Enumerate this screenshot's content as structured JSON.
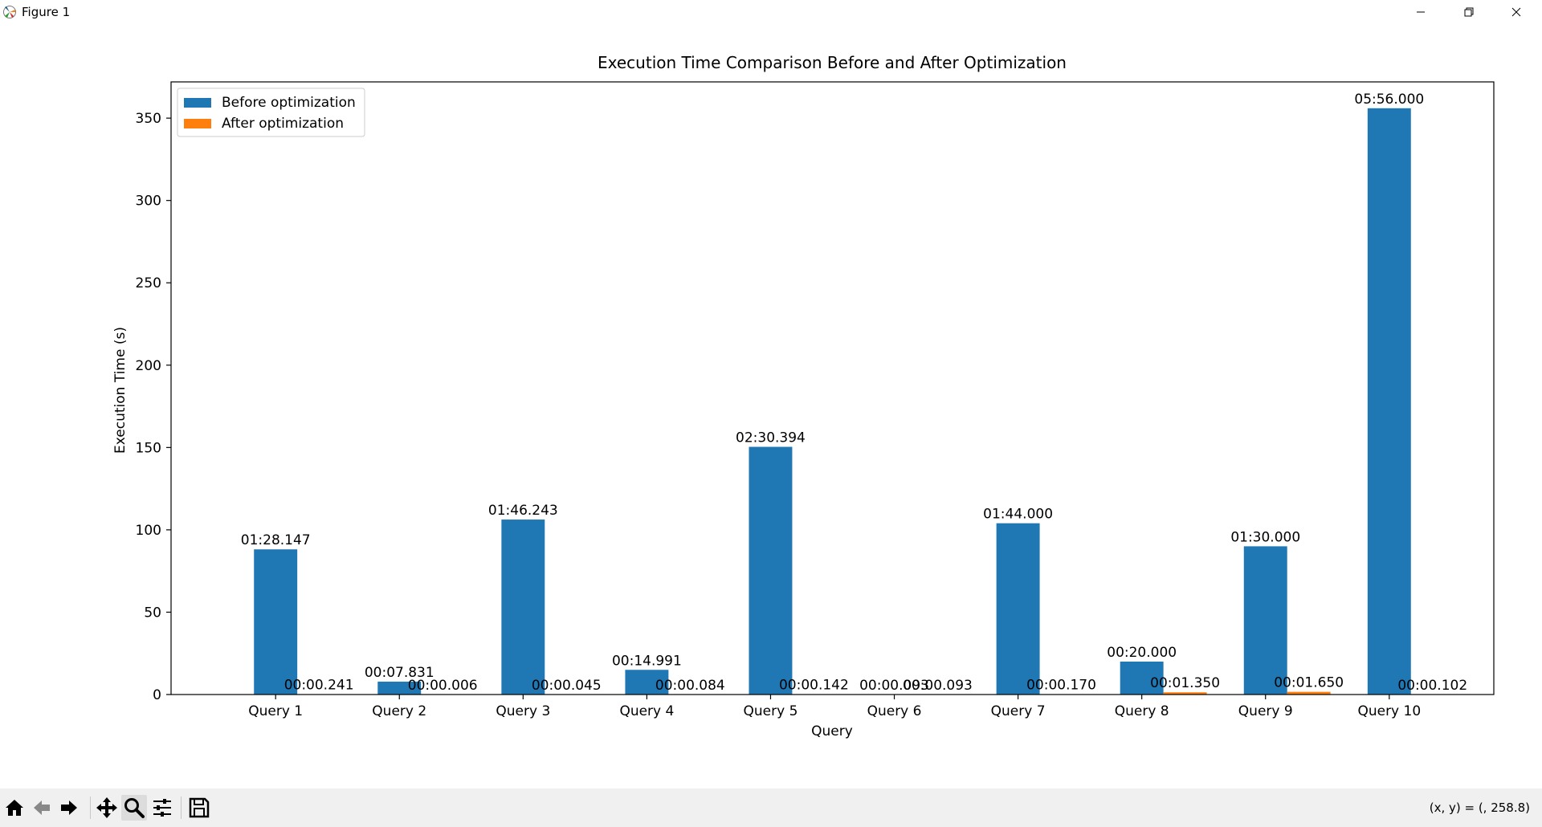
{
  "window": {
    "title": "Figure 1",
    "controls": [
      "minimize-icon",
      "restore-icon",
      "close-icon"
    ]
  },
  "toolbar": {
    "buttons": [
      "home-icon",
      "back-icon",
      "forward-icon",
      "pan-icon",
      "zoom-icon",
      "configure-icon",
      "save-icon"
    ],
    "active": "zoom-icon",
    "coords": "(x, y) = (, 258.8)"
  },
  "colors": {
    "before": "#1f77b4",
    "after": "#ff7f0e"
  },
  "chart_data": {
    "type": "bar",
    "title": "Execution Time Comparison Before and After Optimization",
    "xlabel": "Query",
    "ylabel": "Execution Time (s)",
    "ylim": [
      0,
      372
    ],
    "yticks": [
      0,
      50,
      100,
      150,
      200,
      250,
      300,
      350
    ],
    "legend_position": "top-left",
    "categories": [
      "Query 1",
      "Query 2",
      "Query 3",
      "Query 4",
      "Query 5",
      "Query 6",
      "Query 7",
      "Query 8",
      "Query 9",
      "Query 10"
    ],
    "series": [
      {
        "name": "Before optimization",
        "values": [
          88.147,
          7.831,
          106.243,
          14.991,
          150.394,
          0.093,
          104.0,
          20.0,
          90.0,
          356.0
        ],
        "labels": [
          "01:28.147",
          "00:07.831",
          "01:46.243",
          "00:14.991",
          "02:30.394",
          "00:00.093",
          "01:44.000",
          "00:20.000",
          "01:30.000",
          "05:56.000"
        ]
      },
      {
        "name": "After optimization",
        "values": [
          0.241,
          0.006,
          0.045,
          0.084,
          0.142,
          0.093,
          0.17,
          1.35,
          1.65,
          0.102
        ],
        "labels": [
          "00:00.241",
          "00:00.006",
          "00:00.045",
          "00:00.084",
          "00:00.142",
          "00:00.093",
          "00:00.170",
          "00:01.350",
          "00:01.650",
          "00:00.102"
        ]
      }
    ]
  }
}
